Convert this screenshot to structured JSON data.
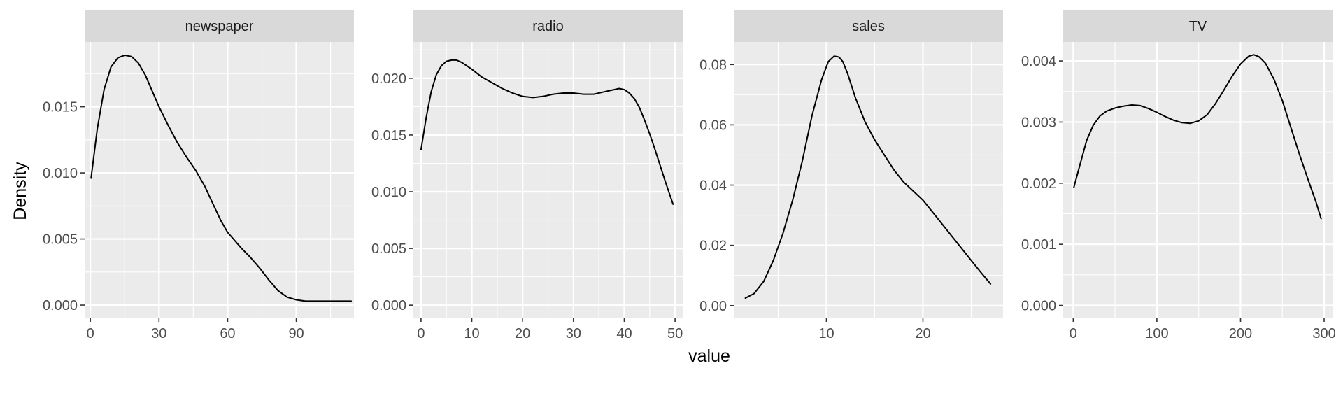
{
  "chart_data": {
    "type": "line",
    "xlabel": "value",
    "ylabel": "Density",
    "panels": [
      {
        "name": "newspaper",
        "xlim": [
          -2.5,
          115.2
        ],
        "ylim": [
          -0.00095,
          0.0199
        ],
        "x_ticks": [
          0,
          30,
          60,
          90
        ],
        "x_tick_labels": [
          "0",
          "30",
          "60",
          "90"
        ],
        "y_ticks": [
          0,
          0.005,
          0.01,
          0.015
        ],
        "y_tick_labels": [
          "0.000",
          "0.005",
          "0.010",
          "0.015"
        ],
        "series": [
          {
            "x": [
              0.3,
              3,
              6,
              9,
              12,
              15,
              18,
              21,
              24,
              27,
              30,
              34,
              38,
              42,
              46,
              50,
              54,
              57,
              60,
              63,
              66,
              70,
              74,
              78,
              82,
              86,
              90,
              94,
              98,
              102,
              106,
              110,
              114
            ],
            "y": [
              0.0096,
              0.0133,
              0.0163,
              0.018,
              0.0187,
              0.0189,
              0.0188,
              0.0183,
              0.0174,
              0.0162,
              0.015,
              0.0136,
              0.0123,
              0.0112,
              0.0102,
              0.009,
              0.0075,
              0.0064,
              0.0055,
              0.0049,
              0.0043,
              0.0036,
              0.0028,
              0.0019,
              0.0011,
              0.0006,
              0.0004,
              0.0003,
              0.0003,
              0.0003,
              0.0003,
              0.0003,
              0.0003
            ]
          }
        ]
      },
      {
        "name": "radio",
        "xlim": [
          -1.5,
          51.5
        ],
        "ylim": [
          -0.0011,
          0.0232
        ],
        "x_ticks": [
          0,
          10,
          20,
          30,
          40,
          50
        ],
        "x_tick_labels": [
          "0",
          "10",
          "20",
          "30",
          "40",
          "50"
        ],
        "y_ticks": [
          0,
          0.005,
          0.01,
          0.015,
          0.02
        ],
        "y_tick_labels": [
          "0.000",
          "0.005",
          "0.010",
          "0.015",
          "0.020"
        ],
        "series": [
          {
            "x": [
              0,
              1,
              2,
              3,
              4,
              5,
              6,
              7,
              8,
              9,
              10,
              12,
              14,
              16,
              18,
              20,
              22,
              24,
              26,
              28,
              30,
              32,
              34,
              36,
              38,
              39,
              40,
              41,
              42,
              43,
              44,
              45,
              46,
              47,
              48,
              49.6
            ],
            "y": [
              0.0137,
              0.0165,
              0.0188,
              0.0203,
              0.0211,
              0.0215,
              0.0216,
              0.0216,
              0.0214,
              0.0211,
              0.0208,
              0.0201,
              0.0196,
              0.0191,
              0.0187,
              0.0184,
              0.0183,
              0.0184,
              0.0186,
              0.0187,
              0.0187,
              0.0186,
              0.0186,
              0.0188,
              0.019,
              0.0191,
              0.019,
              0.0187,
              0.0182,
              0.0174,
              0.0163,
              0.0151,
              0.0138,
              0.0124,
              0.011,
              0.0089
            ]
          }
        ]
      },
      {
        "name": "sales",
        "xlim": [
          0.4,
          28.3
        ],
        "ylim": [
          -0.004,
          0.0875
        ],
        "x_ticks": [
          10,
          20
        ],
        "x_tick_labels": [
          "10",
          "20"
        ],
        "y_ticks": [
          0,
          0.02,
          0.04,
          0.06,
          0.08
        ],
        "y_tick_labels": [
          "0.00",
          "0.02",
          "0.04",
          "0.06",
          "0.08"
        ],
        "series": [
          {
            "x": [
              1.6,
              2.5,
              3.5,
              4.5,
              5.5,
              6.5,
              7.5,
              8.5,
              9.5,
              10.2,
              10.8,
              11.3,
              11.7,
              12.2,
              13,
              14,
              15,
              16,
              17,
              18,
              19,
              20,
              21,
              22,
              23,
              24,
              25,
              26,
              27
            ],
            "y": [
              0.0025,
              0.004,
              0.008,
              0.015,
              0.024,
              0.035,
              0.048,
              0.063,
              0.075,
              0.081,
              0.0828,
              0.0825,
              0.081,
              0.077,
              0.069,
              0.061,
              0.055,
              0.05,
              0.045,
              0.041,
              0.038,
              0.035,
              0.031,
              0.027,
              0.023,
              0.019,
              0.015,
              0.011,
              0.0072
            ]
          }
        ]
      },
      {
        "name": "TV",
        "xlim": [
          -12,
          310
        ],
        "ylim": [
          -0.0002,
          0.00431
        ],
        "x_ticks": [
          0,
          100,
          200,
          300
        ],
        "x_tick_labels": [
          "0",
          "100",
          "200",
          "300"
        ],
        "y_ticks": [
          0,
          0.001,
          0.002,
          0.003,
          0.004
        ],
        "y_tick_labels": [
          "0.000",
          "0.001",
          "0.002",
          "0.003",
          "0.004"
        ],
        "series": [
          {
            "x": [
              0.7,
              8,
              16,
              24,
              32,
              40,
              50,
              60,
              70,
              80,
              90,
              100,
              110,
              120,
              130,
              140,
              150,
              160,
              170,
              180,
              190,
              200,
              210,
              216,
              222,
              230,
              240,
              250,
              260,
              270,
              280,
              290,
              296.4
            ],
            "y": [
              0.00193,
              0.0023,
              0.0027,
              0.00295,
              0.0031,
              0.00318,
              0.00323,
              0.00326,
              0.00328,
              0.00327,
              0.00322,
              0.00316,
              0.00309,
              0.00303,
              0.00299,
              0.00298,
              0.00302,
              0.00312,
              0.0033,
              0.00352,
              0.00375,
              0.00395,
              0.00408,
              0.0041,
              0.00407,
              0.00396,
              0.0037,
              0.00335,
              0.00292,
              0.00249,
              0.00209,
              0.0017,
              0.00142
            ]
          }
        ]
      }
    ]
  }
}
